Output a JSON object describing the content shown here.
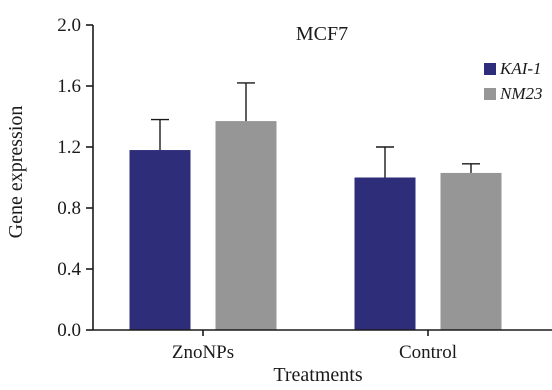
{
  "chart_data": {
    "type": "bar",
    "title": "MCF7",
    "xlabel": "Treatments",
    "ylabel": "Gene expression",
    "ylim": [
      0,
      2.0
    ],
    "yticks": [
      "0.0",
      "0.4",
      "0.8",
      "1.2",
      "1.6",
      "2.0"
    ],
    "categories": [
      "ZnoNPs",
      "Control"
    ],
    "series": [
      {
        "name": "KAI-1",
        "color": "#2e2d7a",
        "values": [
          1.18,
          1.0
        ],
        "errors": [
          0.2,
          0.2
        ]
      },
      {
        "name": "NM23",
        "color": "#969696",
        "values": [
          1.37,
          1.03
        ],
        "errors": [
          0.25,
          0.06
        ]
      }
    ],
    "legend_position": "top-right",
    "grid": false
  }
}
